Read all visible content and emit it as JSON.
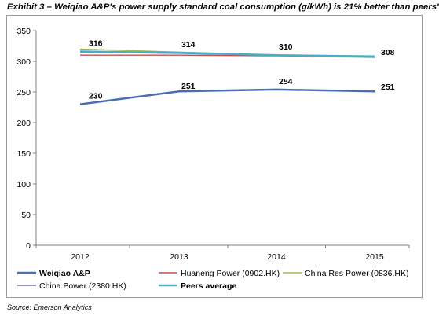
{
  "title": "Exhibit 3 – Weiqiao A&P's power supply standard coal consumption (g/kWh) is 21% better than peers'",
  "source": "Source: Emerson Analytics",
  "chart_data": {
    "type": "line",
    "x": [
      "2012",
      "2013",
      "2014",
      "2015"
    ],
    "ylim": [
      0,
      350
    ],
    "yticks": [
      0,
      50,
      100,
      150,
      200,
      250,
      300,
      350
    ],
    "grid": false,
    "legend_position": "bottom",
    "series": [
      {
        "name": "Weiqiao A&P",
        "color": "#4a6fae",
        "bold": true,
        "values": [
          230,
          251,
          254,
          251
        ],
        "labels": [
          "230",
          "251",
          "254",
          "251"
        ]
      },
      {
        "name": "Huaneng Power (0902.HK)",
        "color": "#c0504d",
        "bold": false,
        "values": [
          310,
          310,
          309,
          307
        ],
        "labels": null
      },
      {
        "name": "China Res Power (0836.HK)",
        "color": "#9bbb59",
        "bold": false,
        "values": [
          320,
          315,
          310,
          306
        ],
        "labels": null
      },
      {
        "name": "China Power (2380.HK)",
        "color": "#8064a2",
        "bold": false,
        "values": [
          315,
          313,
          310,
          308
        ],
        "labels": null
      },
      {
        "name": "Peers average",
        "color": "#4bacc6",
        "bold": true,
        "values": [
          316,
          314,
          310,
          308
        ],
        "labels": [
          "316",
          "314",
          "310",
          "308"
        ]
      }
    ]
  }
}
